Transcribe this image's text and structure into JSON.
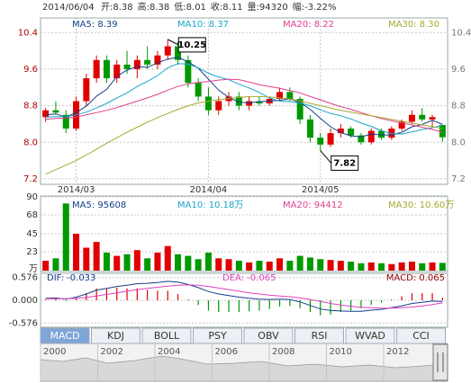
{
  "header": {
    "date": "2014/06/04",
    "fields": [
      "开:8.38",
      "高:8.38",
      "低:8.01",
      "收:8.11",
      "量:94320",
      "幅:-3.22%"
    ]
  },
  "chart_data": [
    {
      "type": "candlestick",
      "categories": [
        null,
        null,
        null,
        "2014/03",
        null,
        null,
        null,
        null,
        null,
        null,
        null,
        null,
        null,
        null,
        null,
        null,
        "2014/04",
        null,
        null,
        null,
        null,
        null,
        null,
        null,
        null,
        null,
        null,
        "2014/05",
        null,
        null,
        null,
        null,
        null,
        null,
        null,
        null,
        null,
        null,
        null,
        null
      ],
      "candles": [
        [
          8.55,
          8.75,
          8.45,
          8.7
        ],
        [
          8.7,
          8.9,
          8.6,
          8.65
        ],
        [
          8.6,
          8.7,
          8.2,
          8.3
        ],
        [
          8.3,
          9.0,
          8.25,
          8.9
        ],
        [
          8.9,
          9.5,
          8.8,
          9.4
        ],
        [
          9.4,
          9.9,
          9.3,
          9.8
        ],
        [
          9.8,
          9.9,
          9.3,
          9.4
        ],
        [
          9.4,
          9.8,
          9.3,
          9.7
        ],
        [
          9.7,
          10.0,
          9.5,
          9.6
        ],
        [
          9.6,
          9.9,
          9.4,
          9.8
        ],
        [
          9.8,
          10.1,
          9.6,
          9.7
        ],
        [
          9.7,
          10.0,
          9.6,
          9.9
        ],
        [
          9.9,
          10.25,
          9.8,
          10.1
        ],
        [
          10.1,
          10.2,
          9.7,
          9.8
        ],
        [
          9.8,
          9.9,
          9.2,
          9.3
        ],
        [
          9.3,
          9.4,
          8.9,
          9.0
        ],
        [
          9.0,
          9.2,
          8.6,
          8.7
        ],
        [
          8.7,
          9.0,
          8.6,
          8.9
        ],
        [
          8.9,
          9.1,
          8.8,
          9.0
        ],
        [
          9.0,
          9.1,
          8.7,
          8.8
        ],
        [
          8.8,
          9.0,
          8.7,
          8.9
        ],
        [
          8.9,
          9.0,
          8.8,
          8.85
        ],
        [
          8.85,
          9.0,
          8.8,
          8.95
        ],
        [
          8.95,
          9.2,
          8.9,
          9.1
        ],
        [
          9.1,
          9.2,
          8.9,
          8.95
        ],
        [
          8.95,
          9.0,
          8.4,
          8.5
        ],
        [
          8.5,
          8.6,
          8.0,
          8.1
        ],
        [
          8.1,
          8.2,
          7.82,
          7.95
        ],
        [
          7.95,
          8.3,
          7.9,
          8.2
        ],
        [
          8.2,
          8.4,
          8.1,
          8.3
        ],
        [
          8.3,
          8.35,
          8.1,
          8.15
        ],
        [
          8.15,
          8.2,
          7.95,
          8.0
        ],
        [
          8.0,
          8.3,
          7.95,
          8.25
        ],
        [
          8.25,
          8.3,
          8.05,
          8.1
        ],
        [
          8.1,
          8.35,
          8.05,
          8.3
        ],
        [
          8.3,
          8.5,
          8.25,
          8.45
        ],
        [
          8.45,
          8.7,
          8.4,
          8.6
        ],
        [
          8.6,
          8.75,
          8.45,
          8.5
        ],
        [
          8.5,
          8.6,
          8.35,
          8.55
        ],
        [
          8.38,
          8.38,
          8.01,
          8.11
        ]
      ],
      "up_color": "#e00000",
      "down_color": "#009900",
      "series": [
        {
          "name": "MA5",
          "label": "MA5: 8.39",
          "color": "#123f8c",
          "values": [
            8.6,
            8.62,
            8.55,
            8.65,
            8.79,
            9.01,
            9.16,
            9.44,
            9.58,
            9.66,
            9.64,
            9.74,
            9.82,
            9.86,
            9.76,
            9.62,
            9.38,
            9.14,
            8.98,
            8.88,
            8.86,
            8.89,
            8.9,
            8.92,
            8.95,
            8.87,
            8.72,
            8.52,
            8.34,
            8.21,
            8.14,
            8.12,
            8.18,
            8.16,
            8.16,
            8.22,
            8.34,
            8.39,
            8.48,
            8.39
          ]
        },
        {
          "name": "MA10",
          "label": "MA10: 8.37",
          "color": "#19a5c8",
          "values": [
            8.55,
            8.56,
            8.56,
            8.6,
            8.66,
            8.75,
            8.85,
            8.97,
            9.08,
            9.22,
            9.33,
            9.46,
            9.63,
            9.72,
            9.71,
            9.63,
            9.51,
            9.43,
            9.37,
            9.27,
            9.19,
            9.09,
            8.97,
            8.9,
            8.89,
            8.86,
            8.8,
            8.71,
            8.63,
            8.58,
            8.51,
            8.42,
            8.35,
            8.25,
            8.19,
            8.18,
            8.23,
            8.28,
            8.32,
            8.37
          ]
        },
        {
          "name": "MA20",
          "label": "MA20: 8.22",
          "color": "#e0408f",
          "values": [
            8.5,
            8.52,
            8.53,
            8.55,
            8.6,
            8.65,
            8.7,
            8.76,
            8.83,
            8.9,
            8.97,
            9.05,
            9.14,
            9.22,
            9.28,
            9.31,
            9.33,
            9.36,
            9.38,
            9.37,
            9.32,
            9.26,
            9.22,
            9.18,
            9.13,
            9.08,
            9.0,
            8.93,
            8.85,
            8.78,
            8.72,
            8.65,
            8.58,
            8.52,
            8.47,
            8.42,
            8.38,
            8.33,
            8.28,
            8.22
          ]
        },
        {
          "name": "MA30",
          "label": "MA30: 8.30",
          "color": "#a8a830",
          "values": [
            7.3,
            7.4,
            7.5,
            7.6,
            7.72,
            7.85,
            7.98,
            8.1,
            8.22,
            8.33,
            8.44,
            8.54,
            8.63,
            8.72,
            8.8,
            8.86,
            8.9,
            8.93,
            8.96,
            8.98,
            9.0,
            9.0,
            8.99,
            8.97,
            8.95,
            8.9,
            8.85,
            8.8,
            8.75,
            8.7,
            8.66,
            8.62,
            8.58,
            8.54,
            8.5,
            8.46,
            8.42,
            8.38,
            8.34,
            8.3
          ]
        }
      ],
      "annotations": [
        {
          "text": "10.25",
          "at": 12
        },
        {
          "text": "7.82",
          "at": 27
        }
      ],
      "ylim": [
        7.1,
        10.7
      ],
      "yticks": [
        7.2,
        {
          "value": 8,
          "label": "8.0"
        },
        8.8,
        9.6,
        10.4
      ],
      "grid": true
    },
    {
      "type": "bar",
      "values": [
        12,
        15,
        82,
        45,
        28,
        35,
        22,
        18,
        20,
        25,
        15,
        22,
        30,
        20,
        18,
        14,
        22,
        15,
        14,
        12,
        10,
        12,
        11,
        15,
        12,
        18,
        16,
        14,
        13,
        12,
        11,
        9,
        10,
        9,
        8,
        10,
        11,
        9,
        10,
        9.432
      ],
      "unit": "万",
      "legend": [
        {
          "label": "MA5: 95608",
          "color": "#123f8c"
        },
        {
          "label": "MA10: 10.18万",
          "color": "#19a5c8"
        },
        {
          "label": "MA20: 94412",
          "color": "#e0408f"
        },
        {
          "label": "MA30: 10.60万",
          "color": "#a8a830"
        }
      ],
      "ylim": [
        0,
        90
      ],
      "yticks": [
        23,
        45,
        68,
        90
      ],
      "grid": true
    },
    {
      "type": "macd",
      "series": [
        {
          "name": "DIF",
          "label": "DIF: -0.033",
          "color": "#123f8c",
          "values": [
            0.05,
            0.06,
            0.03,
            0.08,
            0.16,
            0.26,
            0.3,
            0.35,
            0.38,
            0.42,
            0.43,
            0.45,
            0.48,
            0.46,
            0.4,
            0.32,
            0.22,
            0.16,
            0.12,
            0.08,
            0.05,
            0.03,
            0.02,
            0.03,
            0.02,
            -0.04,
            -0.13,
            -0.22,
            -0.26,
            -0.27,
            -0.28,
            -0.28,
            -0.25,
            -0.23,
            -0.19,
            -0.14,
            -0.08,
            -0.05,
            -0.02,
            -0.033
          ]
        },
        {
          "name": "DEA",
          "label": "DEA: -0.065",
          "color": "#e040c0",
          "values": [
            0.04,
            0.04,
            0.04,
            0.05,
            0.07,
            0.11,
            0.15,
            0.19,
            0.23,
            0.27,
            0.3,
            0.33,
            0.36,
            0.38,
            0.39,
            0.38,
            0.35,
            0.31,
            0.27,
            0.23,
            0.19,
            0.16,
            0.13,
            0.11,
            0.09,
            0.06,
            0.02,
            -0.03,
            -0.08,
            -0.12,
            -0.15,
            -0.18,
            -0.19,
            -0.2,
            -0.2,
            -0.19,
            -0.17,
            -0.14,
            -0.11,
            -0.065
          ]
        }
      ],
      "hist_label": "MACD: 0.065",
      "hist": [
        0.02,
        0.04,
        -0.02,
        0.06,
        0.18,
        0.3,
        0.3,
        0.32,
        0.3,
        0.3,
        0.26,
        0.24,
        0.24,
        0.16,
        0.02,
        -0.12,
        -0.26,
        -0.3,
        -0.3,
        -0.3,
        -0.28,
        -0.26,
        -0.22,
        -0.16,
        -0.14,
        -0.2,
        -0.3,
        -0.38,
        -0.36,
        -0.3,
        -0.26,
        -0.2,
        -0.12,
        -0.06,
        0.02,
        0.1,
        0.18,
        0.18,
        0.18,
        0.065
      ],
      "ylim": [
        -0.66,
        0.66
      ],
      "yticks": [
        -0.576,
        {
          "value": 0,
          "label": "0.000"
        },
        0.576
      ],
      "grid": true
    }
  ],
  "tabs": [
    "MACD",
    "KDJ",
    "BOLL",
    "PSY",
    "OBV",
    "RSI",
    "WVAD",
    "CCI"
  ],
  "navigator": {
    "years": [
      "2000",
      "2002",
      "2004",
      "2006",
      "2008",
      "2010",
      "2012"
    ]
  }
}
